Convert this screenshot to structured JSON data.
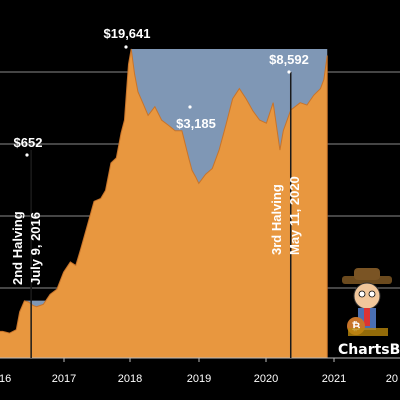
{
  "chart_data": {
    "type": "area",
    "title": "",
    "xlabel": "",
    "ylabel": "",
    "xlim": [
      2016.0,
      2021.0
    ],
    "x_ticks": [
      "16",
      "2017",
      "2018",
      "2019",
      "2020",
      "2021",
      "20"
    ],
    "grid": true,
    "colors": {
      "fill": "#E8973F",
      "fill_stroke": "#C8742A",
      "above": "#7F97B5",
      "background": "#000000",
      "grid": "#8a8a8a"
    },
    "series": [
      {
        "x": [
          2016.0,
          2016.1,
          2016.2,
          2016.3,
          2016.35,
          2016.42,
          2016.48,
          2016.55,
          2016.6,
          2016.7,
          2016.8,
          2016.9,
          2017.0,
          2017.1,
          2017.18,
          2017.25,
          2017.35,
          2017.45,
          2017.55,
          2017.62,
          2017.7,
          2017.78,
          2017.85,
          2017.9,
          2017.93,
          2017.96,
          2018.0,
          2018.05,
          2018.1,
          2018.17,
          2018.25,
          2018.35,
          2018.45,
          2018.55,
          2018.65,
          2018.75,
          2018.85,
          2018.9,
          2018.95,
          2019.0,
          2019.1,
          2019.2,
          2019.3,
          2019.4,
          2019.5,
          2019.6,
          2019.7,
          2019.8,
          2019.9,
          2020.0,
          2020.1,
          2020.2,
          2020.25,
          2020.36,
          2020.5,
          2020.6,
          2020.7,
          2020.8,
          2020.85,
          2020.9
        ],
        "y": [
          430,
          430,
          420,
          440,
          560,
          650,
          640,
          610,
          600,
          620,
          710,
          760,
          960,
          1100,
          1050,
          1300,
          1800,
          2500,
          2600,
          2900,
          4200,
          4500,
          6300,
          7500,
          11000,
          16000,
          19641,
          14000,
          11000,
          9500,
          8000,
          9000,
          7500,
          7000,
          6500,
          6500,
          4500,
          3800,
          3500,
          3185,
          3600,
          3900,
          5000,
          7000,
          10000,
          11500,
          10000,
          8500,
          7500,
          7200,
          9500,
          5000,
          6500,
          8592,
          9500,
          9200,
          10500,
          11500,
          13000,
          18000
        ]
      }
    ],
    "annotations": [
      {
        "text": "$19,641",
        "x": 2017.96
      },
      {
        "text": "$652",
        "x": 2016.42
      },
      {
        "text": "$3,185",
        "x": 2019.0
      },
      {
        "text": "$8,592",
        "x": 2020.36
      }
    ],
    "halvings": [
      {
        "x": 2016.52,
        "label1": "2nd Halving",
        "label2": "July 9, 2016"
      },
      {
        "x": 2020.36,
        "label1": "3rd Halving",
        "label2": "May 11, 2020"
      }
    ],
    "watermark": "ChartsBT"
  }
}
